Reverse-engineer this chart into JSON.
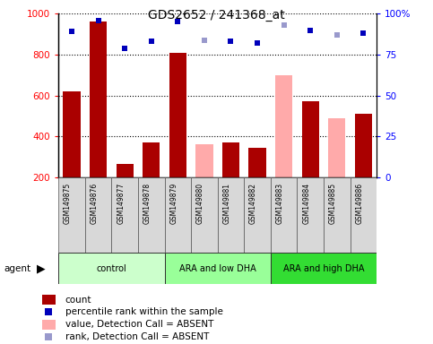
{
  "title": "GDS2652 / 241368_at",
  "samples": [
    "GSM149875",
    "GSM149876",
    "GSM149877",
    "GSM149878",
    "GSM149879",
    "GSM149880",
    "GSM149881",
    "GSM149882",
    "GSM149883",
    "GSM149884",
    "GSM149885",
    "GSM149886"
  ],
  "count_values": [
    620,
    960,
    265,
    370,
    810,
    null,
    370,
    345,
    null,
    570,
    null,
    510
  ],
  "count_absent": [
    null,
    null,
    null,
    null,
    null,
    360,
    null,
    null,
    700,
    null,
    490,
    null
  ],
  "rank_values": [
    89,
    96,
    79,
    83,
    95,
    null,
    83,
    82,
    null,
    90,
    null,
    88
  ],
  "rank_absent": [
    null,
    null,
    null,
    null,
    null,
    84,
    null,
    null,
    93,
    null,
    87,
    null
  ],
  "ylim_left": [
    200,
    1000
  ],
  "ylim_right": [
    0,
    100
  ],
  "yticks_left": [
    200,
    400,
    600,
    800,
    1000
  ],
  "yticks_right": [
    0,
    25,
    50,
    75,
    100
  ],
  "groups": [
    {
      "label": "control",
      "start": 0,
      "end": 4,
      "color": "#ccffcc"
    },
    {
      "label": "ARA and low DHA",
      "start": 4,
      "end": 8,
      "color": "#99ff99"
    },
    {
      "label": "ARA and high DHA",
      "start": 8,
      "end": 12,
      "color": "#33dd33"
    }
  ],
  "bar_color_present": "#aa0000",
  "bar_color_absent": "#ffaaaa",
  "rank_color_present": "#0000bb",
  "rank_color_absent": "#9999cc",
  "bg_color": "#d8d8d8",
  "plot_bg": "#ffffff",
  "legend_items": [
    {
      "label": "count",
      "color": "#aa0000",
      "type": "bar"
    },
    {
      "label": "percentile rank within the sample",
      "color": "#0000bb",
      "type": "square"
    },
    {
      "label": "value, Detection Call = ABSENT",
      "color": "#ffaaaa",
      "type": "bar"
    },
    {
      "label": "rank, Detection Call = ABSENT",
      "color": "#9999cc",
      "type": "square"
    }
  ]
}
